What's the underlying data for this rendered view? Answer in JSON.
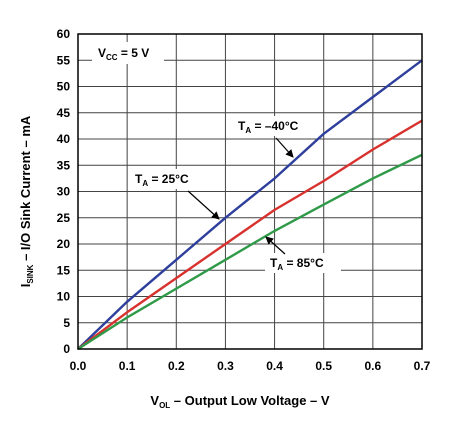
{
  "chart_data": {
    "type": "line",
    "xlabel": {
      "main": "V",
      "sub": "OL",
      "rest": " – Output Low Voltage – V"
    },
    "ylabel": {
      "main": "I",
      "sub": "SINK",
      "rest": " – I/O Sink Current – mA"
    },
    "xlim": [
      0,
      0.7
    ],
    "ylim": [
      0,
      60
    ],
    "xticks": [
      "0.0",
      "0.1",
      "0.2",
      "0.3",
      "0.4",
      "0.5",
      "0.6",
      "0.7"
    ],
    "xtick_values": [
      0,
      0.1,
      0.2,
      0.3,
      0.4,
      0.5,
      0.6,
      0.7
    ],
    "yticks": [
      "0",
      "5",
      "10",
      "15",
      "20",
      "25",
      "30",
      "35",
      "40",
      "45",
      "50",
      "55",
      "60"
    ],
    "ytick_values": [
      0,
      5,
      10,
      15,
      20,
      25,
      30,
      35,
      40,
      45,
      50,
      55,
      60
    ],
    "grid": true,
    "condition": {
      "main": "V",
      "sub": "CC",
      "rest": " = 5 V"
    },
    "series": [
      {
        "name": {
          "main": "T",
          "sub": "A",
          "rest": " = –40°C"
        },
        "color": "#2e3f9c",
        "x": [
          0,
          0.1,
          0.2,
          0.3,
          0.4,
          0.5,
          0.6,
          0.7
        ],
        "y": [
          0,
          9,
          17,
          25,
          32.5,
          41,
          48,
          55
        ]
      },
      {
        "name": {
          "main": "T",
          "sub": "A",
          "rest": " = 25°C"
        },
        "color": "#d8322e",
        "x": [
          0,
          0.1,
          0.2,
          0.3,
          0.4,
          0.5,
          0.6,
          0.7
        ],
        "y": [
          0,
          7,
          13.5,
          20,
          26.5,
          32,
          38,
          43.5
        ]
      },
      {
        "name": {
          "main": "T",
          "sub": "A",
          "rest": " = 85°C"
        },
        "color": "#2f9a48",
        "x": [
          0,
          0.1,
          0.2,
          0.3,
          0.4,
          0.5,
          0.6,
          0.7
        ],
        "y": [
          0,
          6,
          11.5,
          17,
          22.5,
          27.5,
          32.5,
          37
        ]
      }
    ]
  }
}
